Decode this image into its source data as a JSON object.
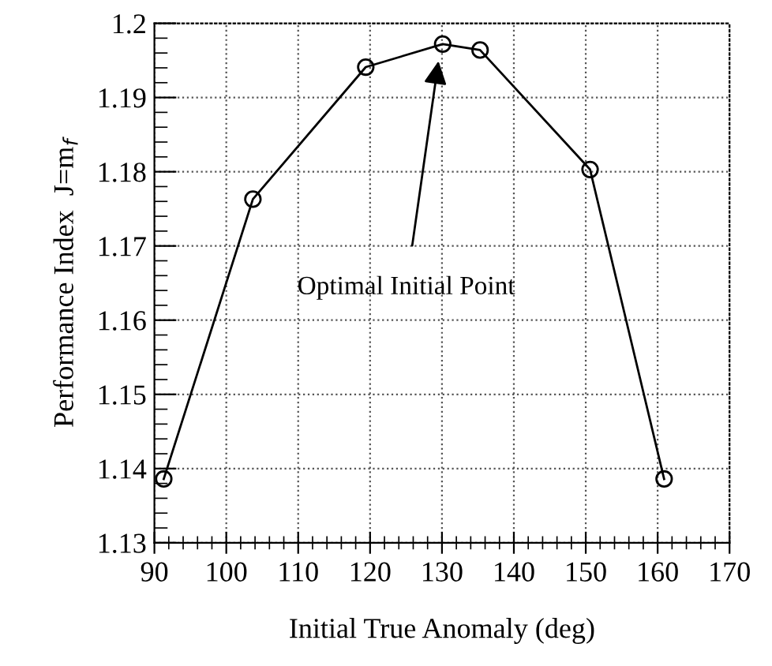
{
  "chart_data": {
    "type": "line",
    "xlabel": "Initial True Anomaly (deg)",
    "ylabel": "Performance Index  J=m$_{f}$",
    "x": [
      91.3,
      103.7,
      119.4,
      130.1,
      135.3,
      150.6,
      160.9
    ],
    "series": [
      {
        "color": "#000000",
        "values": [
          1.1386,
          1.1763,
          1.1941,
          1.1972,
          1.1964,
          1.1803,
          1.1386
        ]
      }
    ],
    "xlim": [
      90,
      170
    ],
    "xticks": [
      90,
      100,
      110,
      120,
      130,
      140,
      150,
      160,
      170
    ],
    "ylim": [
      1.13,
      1.2
    ],
    "yticks": [
      1.13,
      1.14,
      1.15,
      1.16,
      1.17,
      1.18,
      1.19,
      1.2
    ],
    "grid": true,
    "marker": "circle",
    "line_style": "solid",
    "annotations": [
      {
        "text": "Optimal Initial Point",
        "x": 129.6,
        "y": 1.1955
      }
    ]
  }
}
